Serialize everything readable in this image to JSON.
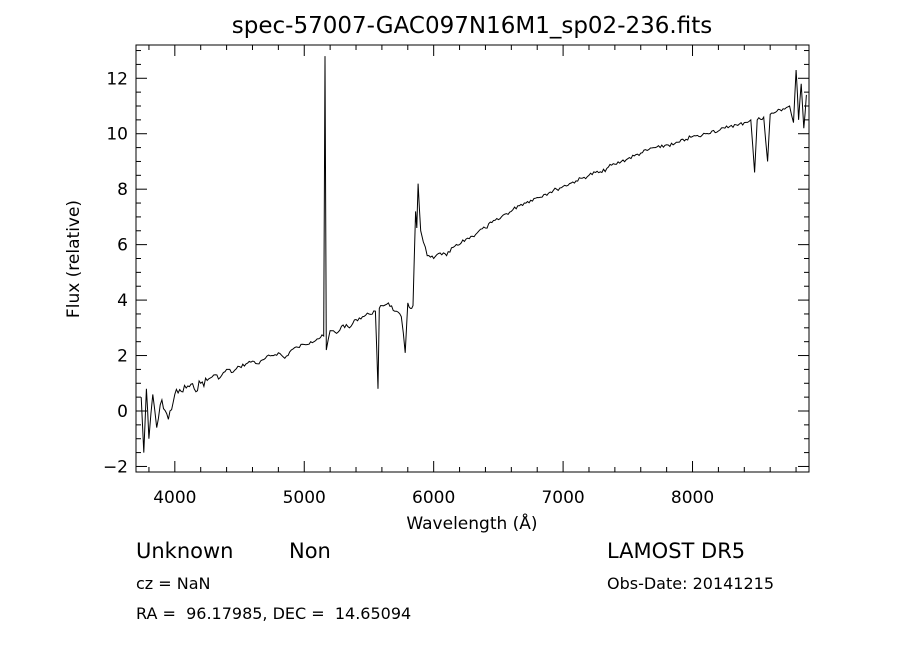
{
  "chart_data": {
    "type": "line",
    "title": "spec-57007-GAC097N16M1_sp02-236.fits",
    "xlabel": "Wavelength (Å)",
    "ylabel": "Flux (relative)",
    "xlim": [
      3700,
      8900
    ],
    "ylim": [
      -2.2,
      13.2
    ],
    "xticks": [
      4000,
      5000,
      6000,
      7000,
      8000
    ],
    "yticks": [
      -2,
      0,
      2,
      4,
      6,
      8,
      10,
      12
    ],
    "grid": false,
    "series": [
      {
        "x": [
          3740,
          3760,
          3780,
          3800,
          3830,
          3860,
          3900,
          3950,
          4000,
          4050,
          4100,
          4150,
          4200,
          4250,
          4300,
          4350,
          4400,
          4450,
          4500,
          4550,
          4600,
          4650,
          4700,
          4750,
          4800,
          4850,
          4900,
          4950,
          5000,
          5050,
          5100,
          5150,
          5160,
          5170,
          5200,
          5250,
          5300,
          5350,
          5400,
          5450,
          5500,
          5550,
          5570,
          5580,
          5600,
          5650,
          5700,
          5750,
          5780,
          5800,
          5820,
          5840,
          5860,
          5870,
          5880,
          5890,
          5900,
          5920,
          5950,
          6000,
          6050,
          6100,
          6150,
          6200,
          6250,
          6300,
          6350,
          6400,
          6450,
          6500,
          6550,
          6600,
          6650,
          6700,
          6750,
          6800,
          6850,
          6900,
          6950,
          7000,
          7050,
          7100,
          7150,
          7200,
          7250,
          7300,
          7350,
          7400,
          7450,
          7500,
          7550,
          7600,
          7650,
          7700,
          7750,
          7800,
          7850,
          7900,
          7950,
          8000,
          8050,
          8100,
          8150,
          8200,
          8250,
          8300,
          8350,
          8400,
          8450,
          8480,
          8500,
          8550,
          8580,
          8600,
          8650,
          8700,
          8750,
          8780,
          8800,
          8820,
          8840,
          8860,
          8880
        ],
        "y": [
          0.5,
          -1.5,
          0.8,
          -1.0,
          0.6,
          -0.6,
          0.4,
          -0.3,
          0.6,
          0.7,
          0.9,
          0.8,
          1.0,
          1.1,
          1.3,
          1.2,
          1.5,
          1.4,
          1.6,
          1.7,
          1.8,
          1.7,
          1.9,
          2.0,
          2.1,
          1.9,
          2.2,
          2.3,
          2.4,
          2.5,
          2.6,
          2.7,
          12.8,
          2.2,
          2.9,
          2.8,
          3.1,
          3.0,
          3.3,
          3.4,
          3.5,
          3.6,
          0.8,
          3.7,
          3.8,
          3.9,
          3.6,
          3.4,
          2.1,
          3.9,
          3.7,
          3.8,
          7.2,
          6.6,
          8.2,
          7.3,
          6.5,
          6.1,
          5.6,
          5.5,
          5.7,
          5.6,
          5.9,
          6.0,
          6.2,
          6.3,
          6.5,
          6.6,
          6.8,
          6.9,
          7.1,
          7.2,
          7.4,
          7.5,
          7.6,
          7.7,
          7.8,
          7.9,
          8.0,
          8.1,
          8.2,
          8.3,
          8.4,
          8.5,
          8.6,
          8.6,
          8.8,
          8.9,
          9.0,
          9.1,
          9.2,
          9.3,
          9.4,
          9.5,
          9.5,
          9.6,
          9.6,
          9.7,
          9.8,
          9.9,
          9.9,
          10.0,
          10.1,
          10.1,
          10.2,
          10.3,
          10.3,
          10.4,
          10.5,
          8.6,
          10.5,
          10.6,
          9.0,
          10.7,
          10.8,
          10.9,
          11.0,
          10.4,
          12.3,
          10.5,
          11.8,
          10.2,
          11.4
        ]
      }
    ]
  },
  "info": {
    "object_class": "Unknown",
    "object_subclass": "Non",
    "survey": "LAMOST DR5",
    "cz": "cz = NaN",
    "obs_date": "Obs-Date: 20141215",
    "coords": "RA =  96.17985, DEC =  14.65094"
  }
}
